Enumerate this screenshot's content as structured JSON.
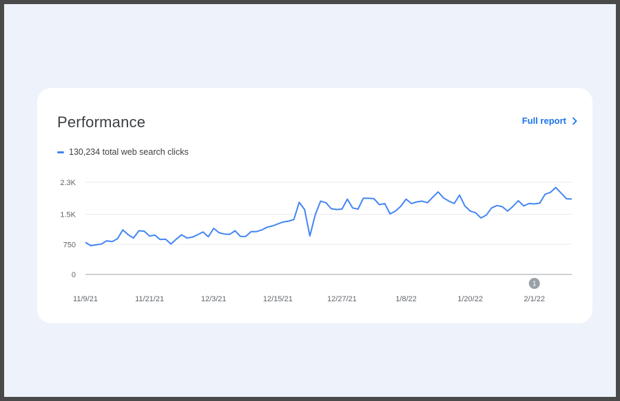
{
  "card": {
    "title": "Performance",
    "full_report_label": "Full report",
    "legend_label": "130,234 total web search clicks"
  },
  "colors": {
    "accent": "#1a73e8",
    "series": "#4285f4",
    "annotation": "#9aa0a6"
  },
  "chart_data": {
    "type": "line",
    "title": "",
    "xlabel": "",
    "ylabel": "",
    "ylim": [
      0,
      2300
    ],
    "y_ticks": [
      0,
      750,
      1500,
      2300
    ],
    "y_tick_labels": [
      "0",
      "750",
      "1.5K",
      "2.3K"
    ],
    "x_tick_labels": [
      "11/9/21",
      "11/21/21",
      "12/3/21",
      "12/15/21",
      "12/27/21",
      "1/8/22",
      "1/20/22",
      "2/1/22"
    ],
    "x_tick_indices": [
      0,
      12,
      24,
      36,
      48,
      60,
      72,
      84
    ],
    "grid": true,
    "legend": "top-left",
    "annotation": {
      "label": "1",
      "index": 84
    },
    "series": [
      {
        "name": "Clicks",
        "values": [
          800,
          720,
          740,
          760,
          840,
          820,
          890,
          1110,
          990,
          910,
          1090,
          1080,
          960,
          980,
          870,
          880,
          760,
          880,
          990,
          910,
          930,
          990,
          1060,
          940,
          1150,
          1040,
          1010,
          1000,
          1090,
          950,
          950,
          1070,
          1070,
          1110,
          1180,
          1210,
          1260,
          1310,
          1330,
          1370,
          1800,
          1620,
          960,
          1490,
          1830,
          1790,
          1640,
          1620,
          1630,
          1880,
          1660,
          1630,
          1900,
          1900,
          1890,
          1740,
          1770,
          1510,
          1580,
          1700,
          1880,
          1770,
          1810,
          1830,
          1790,
          1930,
          2060,
          1910,
          1830,
          1770,
          1980,
          1710,
          1580,
          1540,
          1410,
          1480,
          1660,
          1720,
          1690,
          1580,
          1700,
          1840,
          1710,
          1770,
          1760,
          1780,
          2000,
          2050,
          2170,
          2030,
          1890,
          1880
        ]
      }
    ]
  }
}
